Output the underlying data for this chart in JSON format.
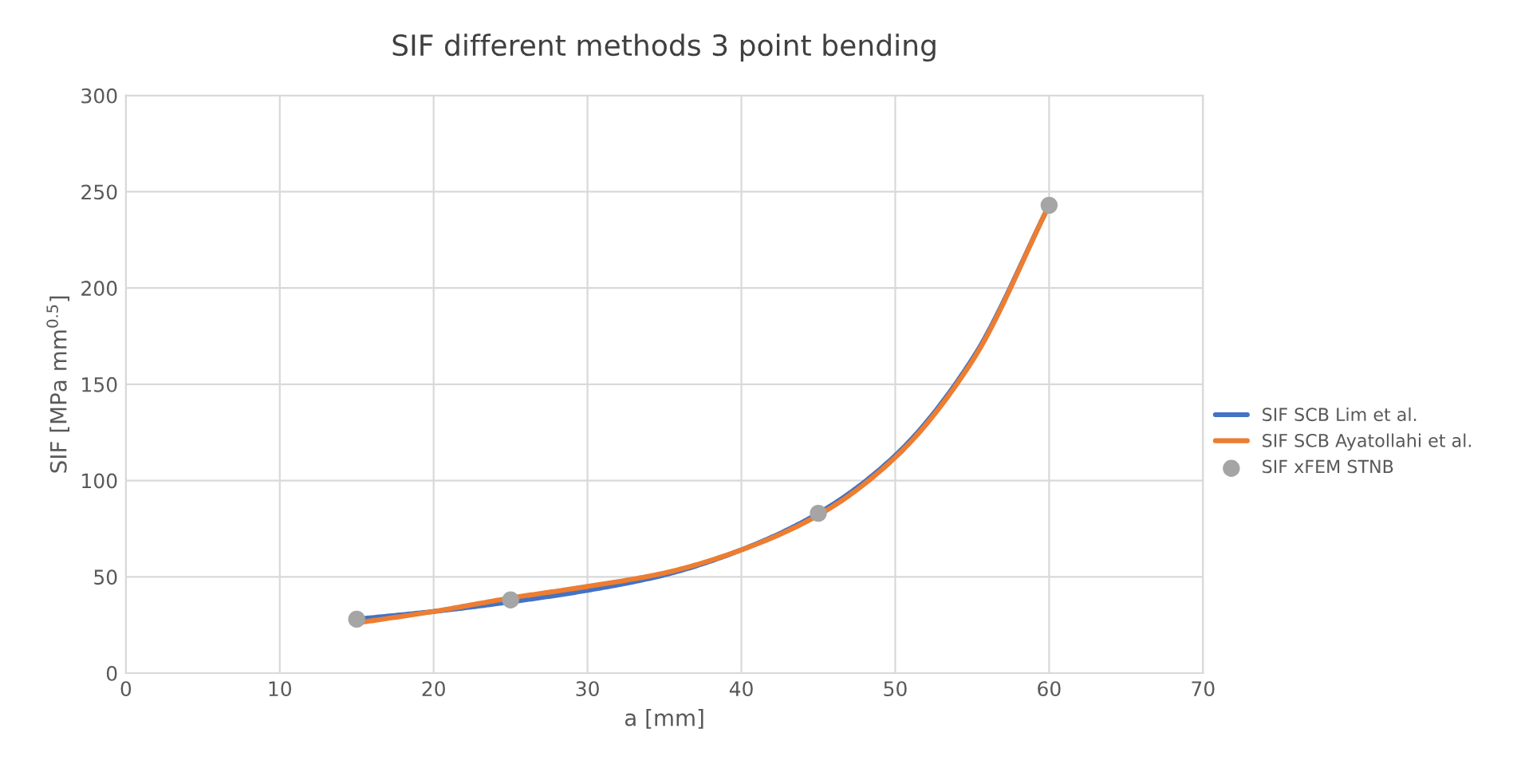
{
  "chart_data": {
    "type": "line",
    "title": "SIF different methods 3 point bending",
    "xlabel": "a [mm]",
    "ylabel": "SIF [MPa mm$^{0.5}$]",
    "xlim": [
      0,
      70
    ],
    "xticks": [
      0,
      10,
      20,
      30,
      40,
      50,
      60,
      70
    ],
    "ylim": [
      0,
      300
    ],
    "yticks": [
      0,
      50,
      100,
      150,
      200,
      250,
      300
    ],
    "grid": true,
    "legend": "right",
    "series": [
      {
        "name": "SIF SCB Lim et al.",
        "color": "#4472c4",
        "x": [
          15,
          20,
          25,
          30,
          35,
          40,
          45,
          50,
          55,
          60
        ],
        "values": [
          28,
          32,
          37,
          43,
          51,
          64,
          83,
          113,
          163,
          243
        ]
      },
      {
        "name": "SIF SCB Ayatollahi et al.",
        "color": "#ed7d31",
        "x": [
          15,
          20,
          25,
          30,
          35,
          40,
          45,
          50,
          55,
          60
        ],
        "values": [
          26,
          32,
          39,
          45,
          52,
          64,
          82,
          112,
          162,
          243
        ]
      },
      {
        "name": "SIF xFEM STNB",
        "type": "scatter",
        "color": "#a5a5a5",
        "marker": "circle",
        "x": [
          15,
          25,
          45,
          60
        ],
        "values": [
          28,
          38,
          83,
          243
        ]
      }
    ]
  }
}
